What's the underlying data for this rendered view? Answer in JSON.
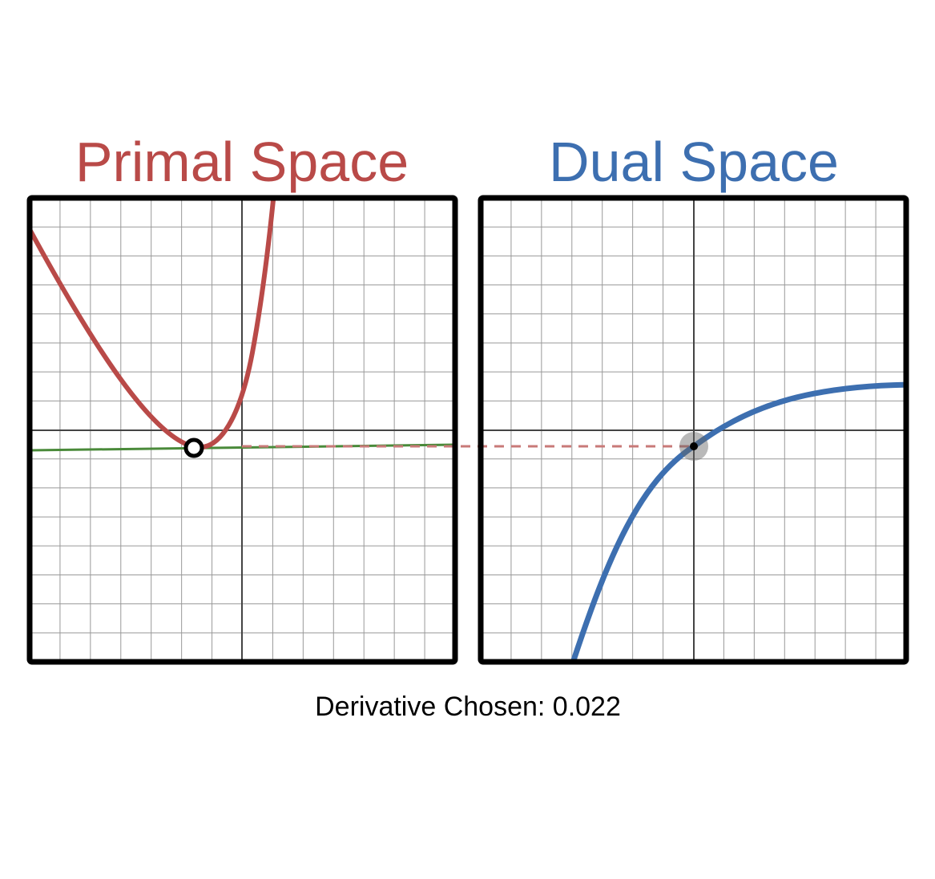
{
  "primal": {
    "title": "Primal Space"
  },
  "dual": {
    "title": "Dual Space"
  },
  "caption": "Derivative Chosen: 0.022"
}
